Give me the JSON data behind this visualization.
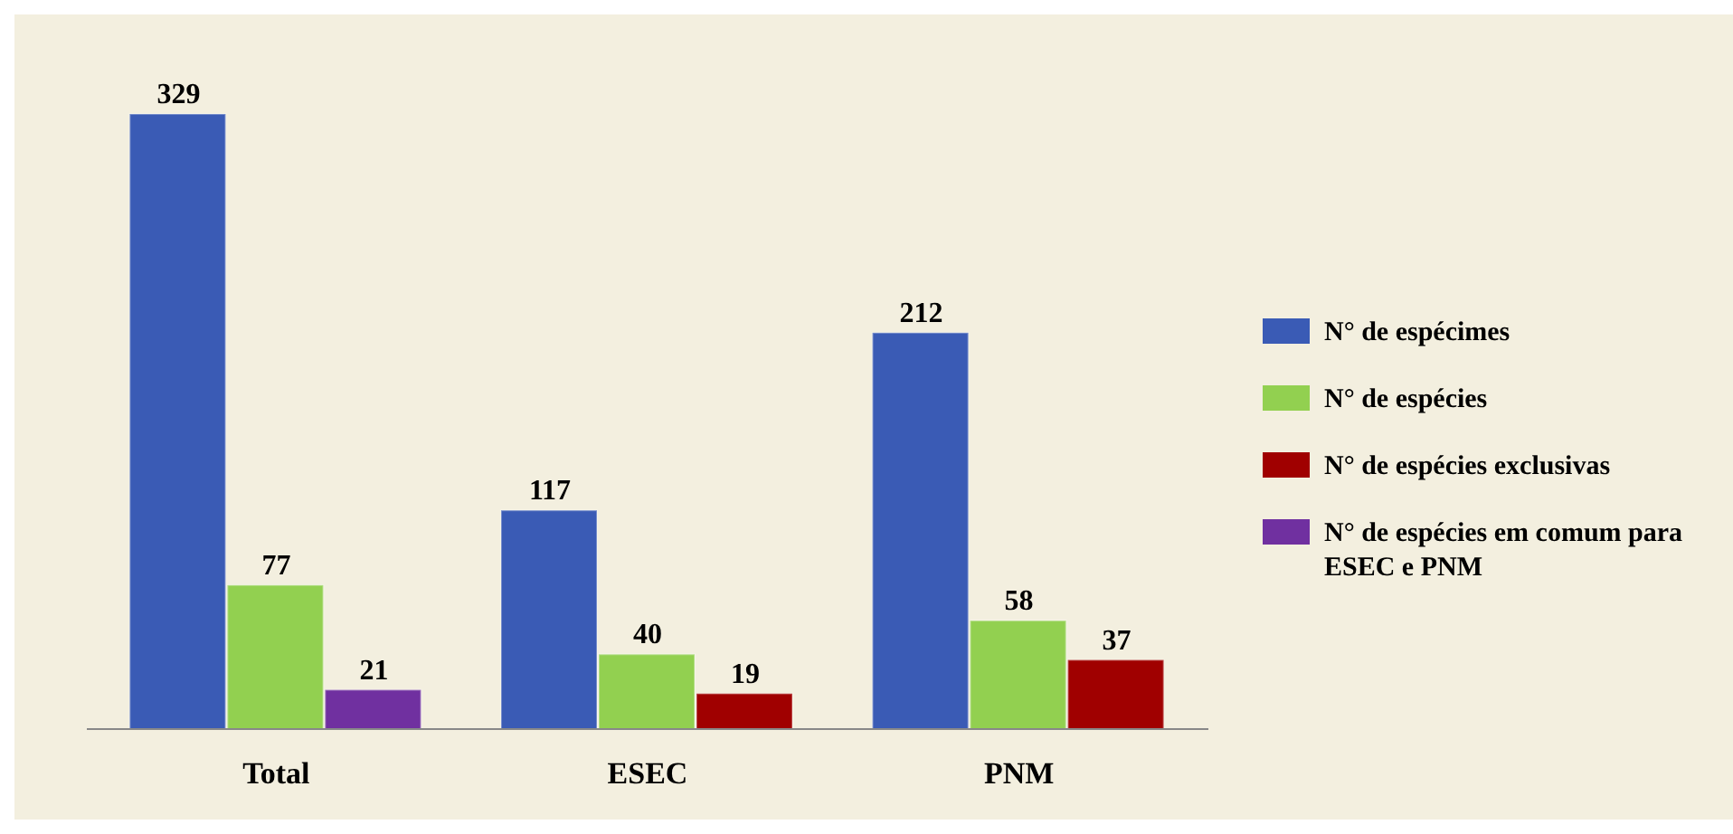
{
  "chart_data": {
    "type": "bar",
    "categories": [
      "Total",
      "ESEC",
      "PNM"
    ],
    "series": [
      {
        "name": "N° de espécimes",
        "color": "#3a5bb5",
        "values": [
          329,
          117,
          212
        ]
      },
      {
        "name": "N° de espécies",
        "color": "#92d050",
        "values": [
          77,
          40,
          58
        ]
      },
      {
        "name": "N° de espécies exclusivas",
        "color": "#a00000",
        "values": [
          null,
          19,
          37
        ]
      },
      {
        "name": "N° de espécies em comum para ESEC e PNM",
        "color": "#7030a0",
        "values": [
          21,
          null,
          null
        ]
      }
    ],
    "data_labels": true,
    "legend": "right",
    "grid": false
  }
}
